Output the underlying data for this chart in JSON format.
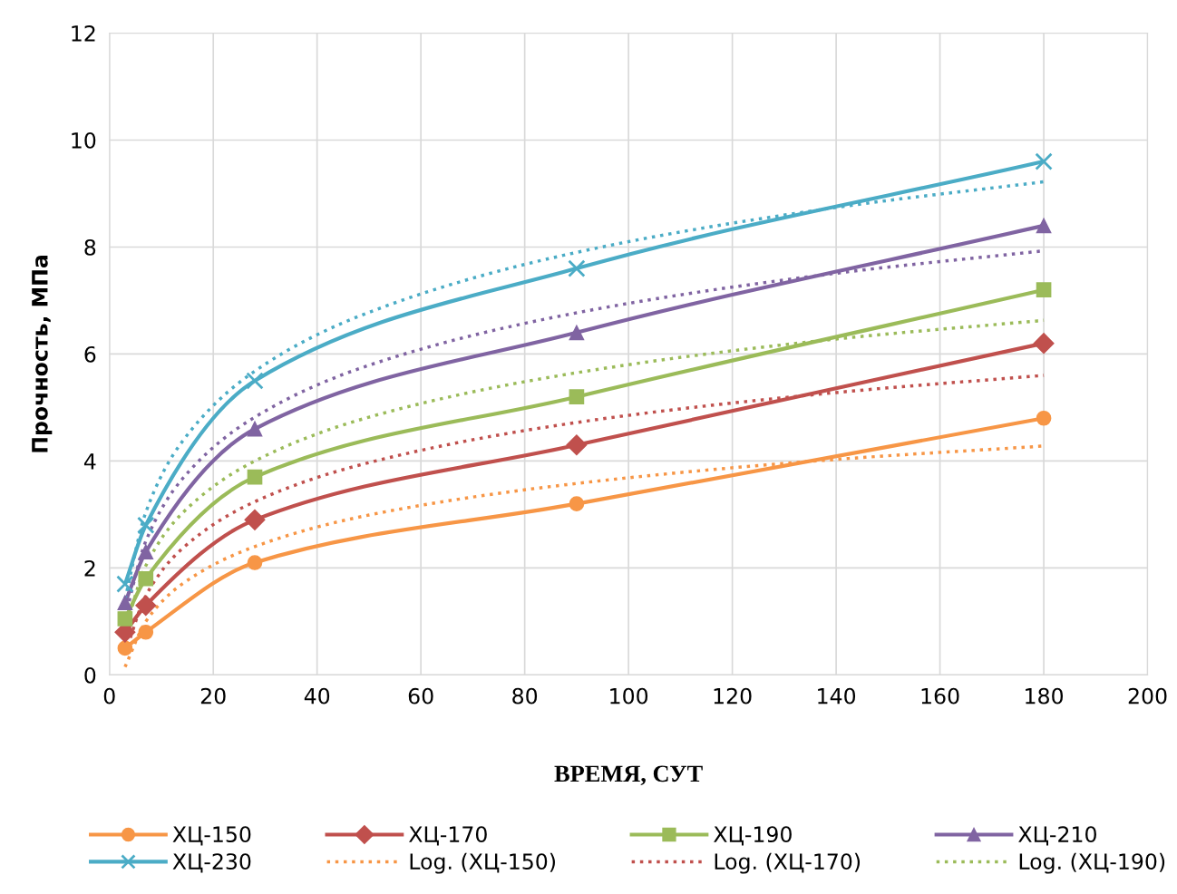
{
  "chart_data": {
    "type": "line",
    "xlabel": "ВРЕМЯ, СУТ",
    "ylabel": "Прочность, МПа",
    "x": [
      3,
      7,
      28,
      90,
      180
    ],
    "xlim": [
      0,
      200
    ],
    "xticks": [
      0,
      20,
      40,
      60,
      80,
      100,
      120,
      140,
      160,
      180,
      200
    ],
    "ylim": [
      0,
      12
    ],
    "yticks": [
      0,
      2,
      4,
      6,
      8,
      10,
      12
    ],
    "grid": true,
    "legend": "bottom",
    "line_style": "solid",
    "series": [
      {
        "name": "ХЦ-150",
        "color": "#f79646",
        "marker": "circle",
        "values": [
          0.5,
          0.8,
          2.1,
          3.2,
          4.8
        ]
      },
      {
        "name": "ХЦ-170",
        "color": "#c0504d",
        "marker": "diamond",
        "values": [
          0.8,
          1.3,
          2.9,
          4.3,
          6.2
        ]
      },
      {
        "name": "ХЦ-190",
        "color": "#9bbb59",
        "marker": "square",
        "values": [
          1.05,
          1.8,
          3.7,
          5.2,
          7.2
        ]
      },
      {
        "name": "ХЦ-210",
        "color": "#8064a2",
        "marker": "triangle",
        "values": [
          1.35,
          2.3,
          4.6,
          6.4,
          8.4
        ]
      },
      {
        "name": "ХЦ-230",
        "color": "#4bacc6",
        "marker": "cross",
        "values": [
          1.7,
          2.8,
          5.5,
          7.6,
          9.6
        ]
      },
      {
        "name": "Log. (ХЦ-150)",
        "color": "#f79646",
        "marker": "none",
        "line_style": "dotted",
        "x": [
          3,
          7,
          14,
          28,
          50,
          90,
          140,
          180
        ],
        "values": [
          0.15,
          1.0,
          1.7,
          2.4,
          2.99,
          3.58,
          4.03,
          4.28
        ]
      },
      {
        "name": "Log. (ХЦ-170)",
        "color": "#c0504d",
        "marker": "none",
        "line_style": "dotted",
        "x": [
          3,
          7,
          14,
          28,
          50,
          90,
          140,
          180
        ],
        "values": [
          0.4,
          1.48,
          2.36,
          3.24,
          3.97,
          4.72,
          5.28,
          5.6
        ]
      },
      {
        "name": "Log. (ХЦ-190)",
        "color": "#9bbb59",
        "marker": "none",
        "line_style": "dotted",
        "x": [
          3,
          7,
          14,
          28,
          50,
          90,
          140,
          180
        ],
        "values": [
          0.84,
          2.04,
          3.02,
          4.0,
          4.82,
          5.65,
          6.28,
          6.63
        ]
      },
      {
        "color": "#8064a2",
        "marker": "none",
        "line_style": "dotted",
        "x": [
          3,
          7,
          14,
          28,
          50,
          90,
          140,
          180
        ],
        "values": [
          1.08,
          2.5,
          3.66,
          4.82,
          5.79,
          6.77,
          7.51,
          7.93
        ]
      },
      {
        "color": "#4bacc6",
        "marker": "none",
        "line_style": "dotted",
        "x": [
          3,
          7,
          14,
          28,
          50,
          90,
          140,
          180
        ],
        "values": [
          1.42,
          3.04,
          4.36,
          5.68,
          6.78,
          7.9,
          8.74,
          9.22
        ]
      }
    ]
  }
}
